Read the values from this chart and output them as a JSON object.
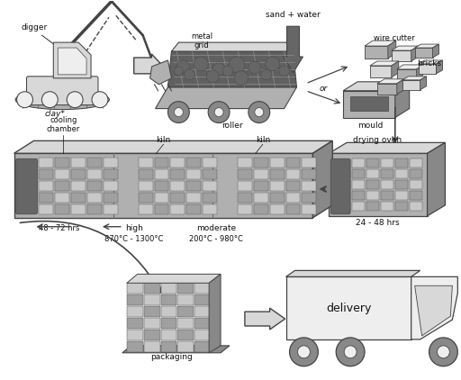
{
  "bg_color": "#ffffff",
  "fig_width": 5.12,
  "fig_height": 4.22,
  "labels": {
    "digger": "digger",
    "clay": "clay*",
    "metal_grid": "metal\ngrid",
    "roller": "roller",
    "sand_water": "sand + water",
    "or": "or",
    "mould": "mould",
    "wire_cutter": "wire cutter",
    "bricks": "bricks",
    "drying_oven": "drying oven",
    "drying_hrs": "24 - 48 hrs",
    "cooling_chamber": "cooling\nchamber",
    "kiln1": "kiln",
    "kiln2": "kiln",
    "hrs_cooling": "48 - 72 hrs",
    "high": "high",
    "high_temp": "870°C - 1300°C",
    "moderate": "moderate",
    "moderate_temp": "200°C - 980°C",
    "packaging": "packaging",
    "delivery": "delivery"
  },
  "colors": {
    "outline": "#444444",
    "fill_light": "#d8d8d8",
    "fill_mid": "#b0b0b0",
    "fill_dark": "#888888",
    "fill_darker": "#666666",
    "fill_very_light": "#eeeeee",
    "text": "#111111",
    "white": "#ffffff",
    "grid_dark": "#606060",
    "brick_light": "#c8c8c8",
    "brick_mid": "#a0a0a0",
    "arrow_gray": "#777777"
  }
}
